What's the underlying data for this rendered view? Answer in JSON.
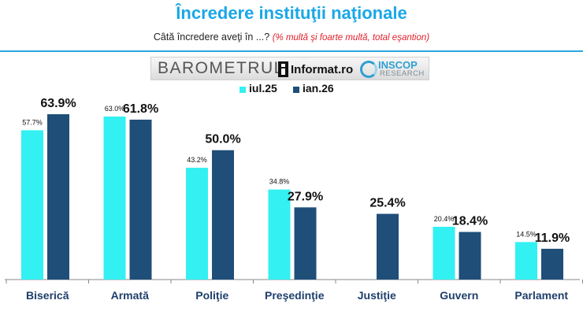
{
  "header": {
    "title": "Încredere instituţii naţionale",
    "subtitle_main": "Câtă încredere aveţi în ...?",
    "subtitle_note": "(% multă şi foarte multă, total eşantion)"
  },
  "logos": {
    "barometru": "BAROMETRUL",
    "informat": "Informat.ro",
    "inscop": "INSCOP",
    "research": "RESEARCH"
  },
  "colors": {
    "iul25": "#33f0f2",
    "ian26": "#1f4e79",
    "title": "#1aa7e8",
    "note": "#e0202a"
  },
  "chart_data": {
    "type": "bar",
    "categories": [
      "Biserică",
      "Armată",
      "Poliţie",
      "Preşedinţie",
      "Justiţie",
      "Guvern",
      "Parlament"
    ],
    "series": [
      {
        "name": "iul.25",
        "values": [
          57.7,
          63.0,
          43.2,
          34.8,
          null,
          20.4,
          14.5
        ],
        "labels": [
          "57.7%",
          "63.0%",
          "43.2%",
          "34.8%",
          "",
          "20.4%",
          "14.5%"
        ]
      },
      {
        "name": "ian.26",
        "values": [
          63.9,
          61.8,
          50.0,
          27.9,
          25.4,
          18.4,
          11.9
        ],
        "labels": [
          "63.9%",
          "61.8%",
          "50.0%",
          "27.9%",
          "25.4%",
          "18.4%",
          "11.9%"
        ]
      }
    ],
    "ylim": [
      0,
      70
    ],
    "legend": "top-center",
    "grid": false
  }
}
